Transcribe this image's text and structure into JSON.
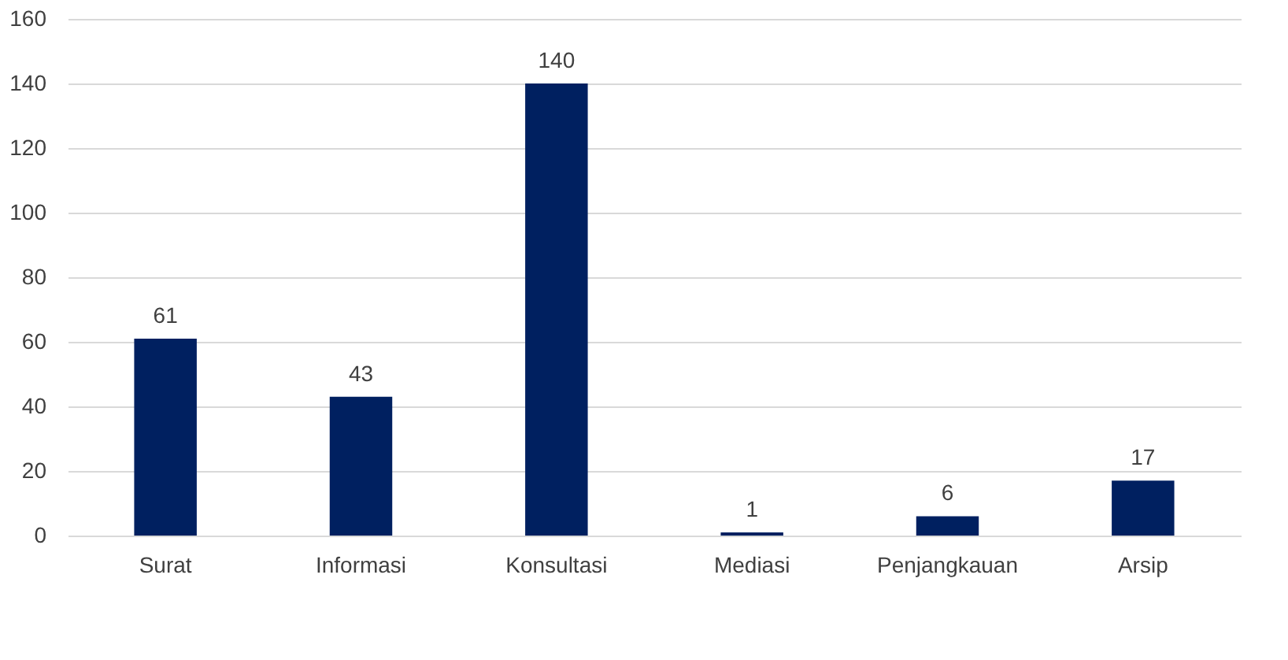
{
  "chart_data": {
    "type": "bar",
    "categories": [
      "Surat",
      "Informasi",
      "Konsultasi",
      "Mediasi",
      "Penjangkauan",
      "Arsip"
    ],
    "values": [
      61,
      43,
      140,
      1,
      6,
      17
    ],
    "color": "#002060",
    "ylim": [
      0,
      160
    ],
    "yticks": [
      0,
      20,
      40,
      60,
      80,
      100,
      120,
      140,
      160
    ],
    "grid": "y",
    "data_labels": true
  }
}
